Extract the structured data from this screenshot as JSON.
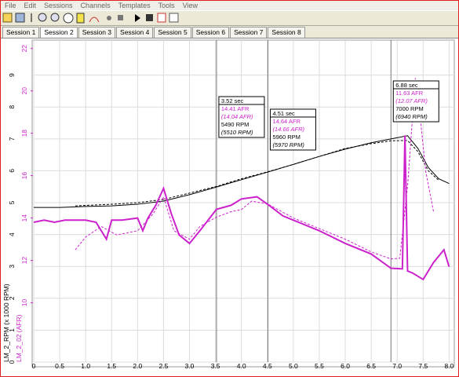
{
  "menu": [
    "File",
    "Edit",
    "Sessions",
    "Channels",
    "Templates",
    "Tools",
    "View"
  ],
  "tabs": [
    "Session 1",
    "Session 2",
    "Session 3",
    "Session 4",
    "Session 5",
    "Session 6",
    "Session 7",
    "Session 8"
  ],
  "chart": {
    "ylabel": "LM_2_RPM (x 1000 RPM)",
    "y2label": "LM_2_02 (AFR)",
    "xlim": [
      0,
      8.1
    ],
    "xticks": [
      0,
      0.5,
      {
        "value": 1,
        "label": "1.0"
      },
      1.5,
      {
        "value": 2,
        "label": "2.0"
      },
      2.5,
      {
        "value": 3,
        "label": "3.0"
      },
      3.5,
      {
        "value": 4,
        "label": "4.0"
      },
      4.5,
      {
        "value": 5,
        "label": "5.0"
      },
      5.5,
      {
        "value": 6,
        "label": "6.0"
      },
      6.5,
      {
        "value": 7,
        "label": "7.0"
      },
      7.5,
      {
        "value": 8,
        "label": "8.0"
      }
    ],
    "ylim": [
      0,
      10.1
    ],
    "yticks": [
      0,
      1,
      2,
      3,
      4,
      5,
      6,
      7,
      8,
      9
    ],
    "y2lim": [
      7.2,
      22.4
    ],
    "y2ticks": [
      10,
      12,
      14,
      16,
      18,
      20,
      22
    ],
    "rpm_color": "#000000",
    "afr_color": "#cc22cc",
    "series": [
      {
        "axis": "y",
        "dash": false,
        "x": [
          0,
          0.5,
          1.0,
          1.5,
          2.0,
          2.5,
          3.0,
          3.52,
          4.0,
          4.51,
          5.0,
          5.5,
          6.0,
          6.5,
          6.88,
          7.2,
          7.4,
          7.6,
          7.8,
          8.0
        ],
        "values": [
          4.85,
          4.85,
          4.88,
          4.9,
          4.95,
          5.05,
          5.25,
          5.49,
          5.72,
          5.96,
          6.2,
          6.45,
          6.68,
          6.88,
          7.0,
          7.1,
          6.7,
          6.1,
          5.75,
          5.6
        ]
      },
      {
        "axis": "y",
        "dash": true,
        "x": [
          0.8,
          1.5,
          2.0,
          2.5,
          3.0,
          3.52,
          4.0,
          4.51,
          5.0,
          5.5,
          6.0,
          6.5,
          6.88,
          7.2,
          7.4,
          7.6,
          7.8
        ],
        "values": [
          4.9,
          4.95,
          5.0,
          5.1,
          5.3,
          5.51,
          5.75,
          5.97,
          6.2,
          6.45,
          6.7,
          6.85,
          6.94,
          6.95,
          6.6,
          6.0,
          5.7
        ]
      },
      {
        "axis": "y2",
        "dash": false,
        "x": [
          0,
          0.2,
          0.4,
          0.6,
          0.8,
          1.0,
          1.2,
          1.4,
          1.5,
          1.7,
          2.0,
          2.1,
          2.2,
          2.35,
          2.5,
          2.65,
          2.8,
          3.0,
          3.2,
          3.52,
          3.8,
          4.0,
          4.3,
          4.51,
          4.8,
          5.0,
          5.5,
          6.0,
          6.5,
          6.88,
          7.1,
          7.15,
          7.2,
          7.3,
          7.5,
          7.7,
          7.9,
          8.0
        ],
        "values": [
          13.8,
          13.9,
          13.8,
          13.9,
          13.9,
          13.9,
          13.8,
          13.0,
          13.9,
          13.9,
          14.0,
          13.4,
          14.0,
          14.6,
          15.4,
          14.2,
          13.2,
          12.8,
          13.4,
          14.41,
          14.6,
          14.9,
          15.0,
          14.64,
          14.1,
          13.9,
          13.4,
          12.8,
          12.3,
          11.63,
          11.6,
          17.9,
          11.5,
          11.4,
          11.1,
          11.9,
          12.5,
          11.7
        ]
      },
      {
        "axis": "y2",
        "dash": true,
        "x": [
          0.8,
          1.0,
          1.3,
          1.6,
          2.0,
          2.3,
          2.5,
          2.7,
          3.0,
          3.2,
          3.52,
          3.8,
          4.0,
          4.2,
          4.51,
          5.0,
          5.5,
          6.0,
          6.5,
          6.88,
          7.05,
          7.2,
          7.35,
          7.45,
          7.55,
          7.7
        ],
        "values": [
          12.5,
          13.1,
          13.6,
          13.2,
          13.4,
          14.2,
          15.0,
          13.4,
          13.0,
          13.6,
          14.04,
          14.3,
          14.4,
          14.8,
          14.66,
          14.0,
          13.5,
          13.0,
          12.4,
          12.07,
          12.1,
          15.5,
          20.6,
          18.6,
          16.2,
          14.3
        ]
      }
    ],
    "cursors": [
      {
        "x": 3.52,
        "time": "3.52 sec",
        "afr": "14.41 AFR",
        "afr_ref": "(14.04 AFR)",
        "rpm": "5490 RPM",
        "rpm_ref": "(5510 RPM)"
      },
      {
        "x": 4.51,
        "time": "4.51 sec",
        "afr": "14.64 AFR",
        "afr_ref": "(14.66 AFR)",
        "rpm": "5960 RPM",
        "rpm_ref": "(5970 RPM)"
      },
      {
        "x": 6.88,
        "time": "6.88 sec",
        "afr": "11.63 AFR",
        "afr_ref": "(12.07 AFR)",
        "rpm": "7000 RPM",
        "rpm_ref": "(6940 RPM)"
      }
    ]
  }
}
